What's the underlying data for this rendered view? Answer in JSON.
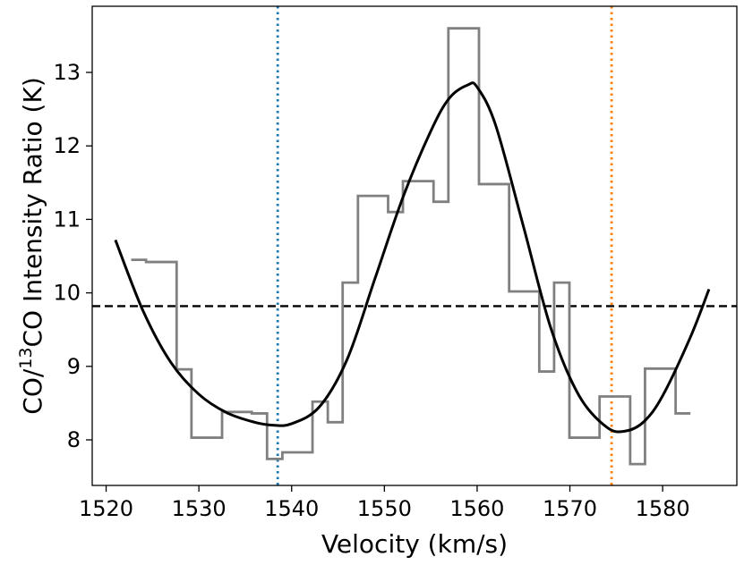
{
  "chart_data": {
    "type": "line",
    "xlabel": "Velocity (km/s)",
    "ylabel": {
      "prefix": "CO/",
      "sup": "13",
      "suffix": "CO Intensity Ratio (K)"
    },
    "xlim": [
      1518.5,
      1588.0
    ],
    "ylim": [
      7.38,
      13.9
    ],
    "xticks": [
      1520,
      1530,
      1540,
      1550,
      1560,
      1570,
      1580
    ],
    "yticks": [
      8,
      9,
      10,
      11,
      12,
      13
    ],
    "grid": false,
    "legend": "none",
    "series": [
      {
        "role": "observed-step",
        "color": "#808080",
        "x": [
          1523.5,
          1525.1,
          1526.8,
          1528.4,
          1530.0,
          1531.7,
          1533.3,
          1534.9,
          1536.5,
          1538.2,
          1539.8,
          1541.4,
          1543.1,
          1544.7,
          1546.3,
          1548.0,
          1549.6,
          1551.2,
          1552.8,
          1554.5,
          1556.1,
          1557.7,
          1559.4,
          1561.0,
          1562.6,
          1564.3,
          1565.9,
          1567.5,
          1569.1,
          1570.8,
          1572.4,
          1574.0,
          1575.7,
          1577.3,
          1578.9,
          1580.6,
          1582.2
        ],
        "y": [
          10.45,
          10.42,
          10.42,
          8.96,
          8.03,
          8.03,
          8.38,
          8.38,
          8.36,
          7.74,
          7.83,
          7.83,
          8.52,
          8.24,
          10.14,
          11.32,
          11.32,
          11.1,
          11.52,
          11.52,
          11.24,
          13.6,
          13.6,
          11.48,
          11.48,
          10.02,
          10.02,
          8.93,
          10.14,
          8.03,
          8.03,
          8.59,
          8.59,
          7.67,
          8.97,
          8.97,
          8.36
        ]
      },
      {
        "role": "fit-curve",
        "color": "#000000",
        "x": [
          1521.0,
          1524.0,
          1527.0,
          1530.0,
          1533.0,
          1536.0,
          1538.0,
          1540.0,
          1543.0,
          1546.0,
          1549.0,
          1552.0,
          1555.0,
          1557.0,
          1559.0,
          1560.0,
          1562.0,
          1565.0,
          1568.0,
          1571.0,
          1574.0,
          1576.0,
          1578.0,
          1580.0,
          1583.0,
          1585.0
        ],
        "y": [
          10.72,
          9.75,
          9.05,
          8.62,
          8.37,
          8.24,
          8.2,
          8.22,
          8.45,
          9.1,
          10.2,
          11.3,
          12.2,
          12.65,
          12.83,
          12.8,
          12.28,
          10.9,
          9.5,
          8.6,
          8.17,
          8.12,
          8.25,
          8.6,
          9.4,
          10.05
        ]
      }
    ],
    "reference_lines": [
      {
        "orientation": "vertical",
        "x": 1538.5,
        "color": "#1f77b4",
        "style": "dotted"
      },
      {
        "orientation": "vertical",
        "x": 1574.5,
        "color": "#ff7f0e",
        "style": "dotted"
      },
      {
        "orientation": "horizontal",
        "y": 9.82,
        "color": "#000000",
        "style": "dashed"
      }
    ]
  }
}
